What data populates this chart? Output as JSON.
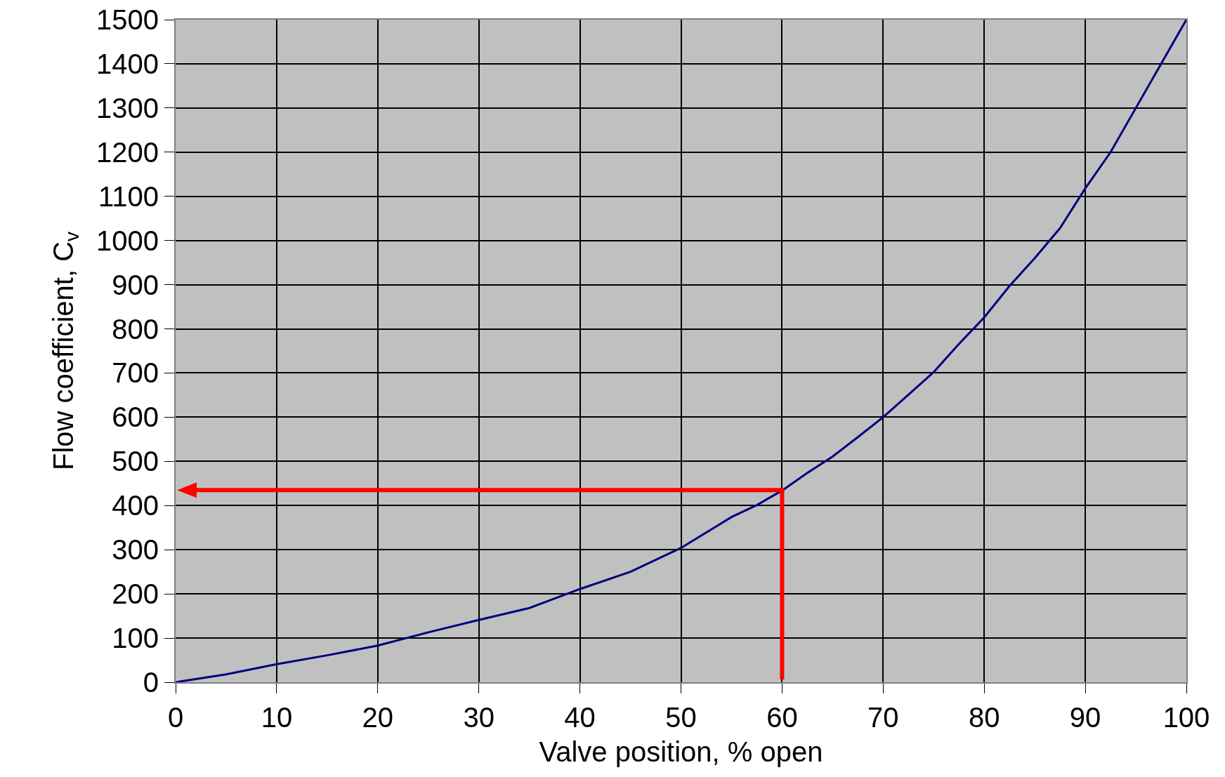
{
  "chart_data": {
    "type": "line",
    "xlabel": "Valve position, % open",
    "ylabel": "Flow coefficient, C$_{v}$",
    "xlim": [
      0,
      100
    ],
    "xticks": [
      0,
      10,
      20,
      30,
      40,
      50,
      60,
      70,
      80,
      90,
      100
    ],
    "ylim": [
      0,
      1500
    ],
    "yticks": [
      0,
      100,
      200,
      300,
      400,
      500,
      600,
      700,
      800,
      900,
      1000,
      1100,
      1200,
      1300,
      1400,
      1500
    ],
    "grid": true,
    "marker": "none",
    "line_style": "solid",
    "series": [
      {
        "color": "#000080",
        "x": [
          0,
          5,
          10,
          15,
          20,
          25,
          30,
          35,
          40,
          45,
          50,
          55,
          57.5,
          60,
          62.5,
          65,
          67.5,
          70,
          72.5,
          75,
          77.5,
          80,
          82.5,
          85,
          87.5,
          90,
          92.5,
          95,
          97.5,
          100
        ],
        "values": [
          0,
          18,
          41,
          61,
          83,
          113,
          141,
          168,
          211,
          250,
          304,
          374,
          401,
          434,
          474,
          511,
          555,
          600,
          651,
          702,
          766,
          826,
          897,
          960,
          1028,
          1118,
          1200,
          1300,
          1400,
          1500
        ]
      }
    ],
    "ref_lines": [
      {
        "axis": "x",
        "value": 60,
        "color": "#ff0000"
      },
      {
        "axis": "y",
        "value": 435,
        "color": "#ff0000"
      }
    ]
  }
}
